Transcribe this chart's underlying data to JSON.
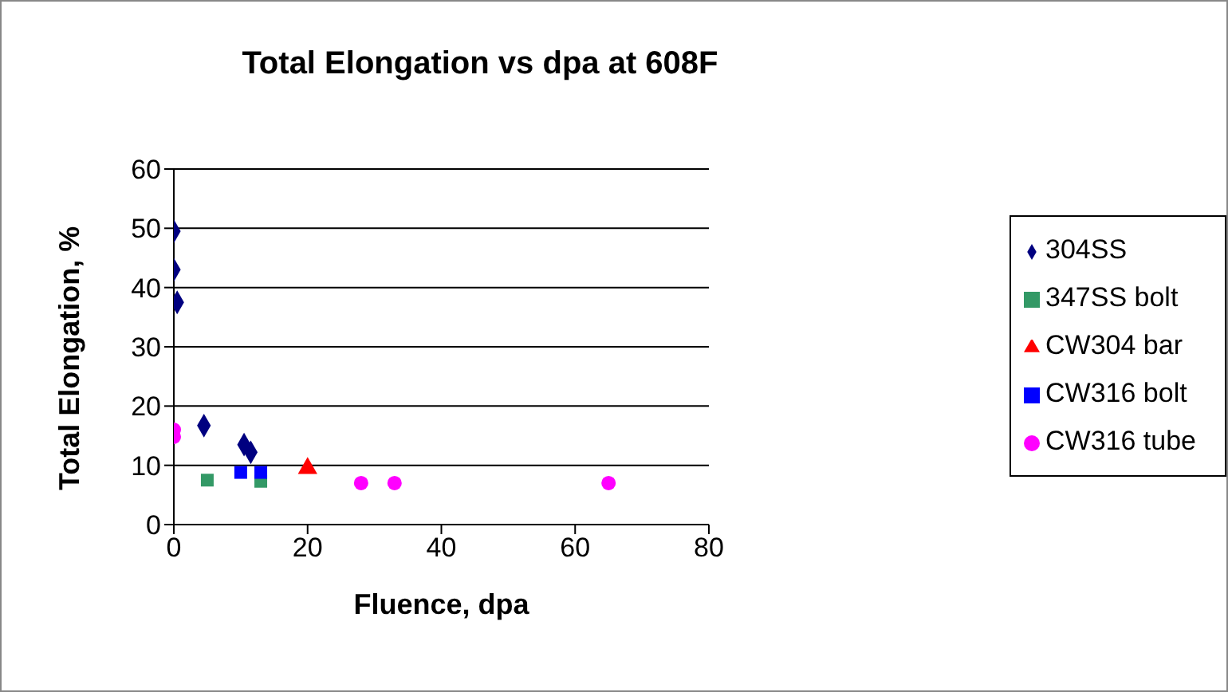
{
  "chart_data": {
    "type": "scatter",
    "title": "Total Elongation vs dpa at 608F",
    "xlabel": "Fluence, dpa",
    "ylabel": "Total Elongation, %",
    "xlim": [
      0,
      80
    ],
    "xticks": [
      0,
      20,
      40,
      60,
      80
    ],
    "ylim": [
      0,
      60
    ],
    "yticks": [
      0,
      10,
      20,
      30,
      40,
      50,
      60
    ],
    "grid": "y",
    "legend": "right",
    "series": [
      {
        "name": "304SS",
        "color": "#000080",
        "marker": "diamond",
        "x": [
          0,
          0,
          0.5,
          4.5,
          10.5,
          11.5
        ],
        "values": [
          49.5,
          43,
          37.5,
          16.7,
          13.5,
          12.2
        ]
      },
      {
        "name": "347SS bolt",
        "color": "#339966",
        "marker": "square",
        "x": [
          5,
          13
        ],
        "values": [
          7.5,
          7.3
        ]
      },
      {
        "name": "CW304 bar",
        "color": "#ff0000",
        "marker": "triangle",
        "x": [
          20
        ],
        "values": [
          9.5
        ]
      },
      {
        "name": "CW316 bolt",
        "color": "#0000ff",
        "marker": "square",
        "x": [
          10,
          13
        ],
        "values": [
          8.8,
          8.8
        ]
      },
      {
        "name": "CW316 tube",
        "color": "#ff00ff",
        "marker": "circle",
        "x": [
          0,
          0,
          28,
          33,
          65
        ],
        "values": [
          16,
          14.8,
          7,
          7,
          7
        ]
      }
    ]
  }
}
